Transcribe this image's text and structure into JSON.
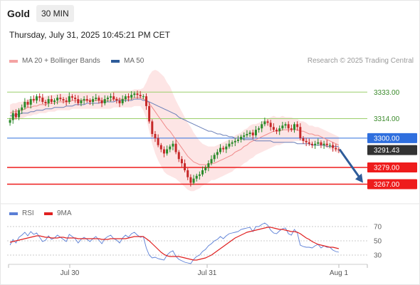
{
  "header": {
    "symbol": "Gold",
    "timeframe": "30 MIN",
    "datetime": "Thursday, July 31, 2025 10:45:21 PM CET"
  },
  "legend": {
    "items": [
      {
        "label": "MA 20 + Bollinger Bands",
        "color": "#f4a3a3"
      },
      {
        "label": "MA 50",
        "color": "#2e5c9a"
      }
    ],
    "credit": "Research © 2025 Trading Central"
  },
  "rsi_legend": {
    "items": [
      {
        "label": "RSI",
        "color": "#5b7fd6"
      },
      {
        "label": "9MA",
        "color": "#e02020"
      }
    ]
  },
  "chart_data": [
    {
      "type": "candlestick",
      "title": "Gold",
      "timeframe": "30 MIN",
      "ylim": [
        3255,
        3350
      ],
      "x_ticks": [
        "Jul 30",
        "Jul 31",
        "Aug 1"
      ],
      "levels": [
        {
          "value": 3333.0,
          "label": "3333.00",
          "kind": "resistance",
          "color": "#9bcf6b"
        },
        {
          "value": 3314.0,
          "label": "3314.00",
          "kind": "resistance",
          "color": "#9bcf6b"
        },
        {
          "value": 3300.0,
          "label": "3300.00",
          "kind": "pivot",
          "color": "#2f6fde"
        },
        {
          "value": 3291.43,
          "label": "3291.43",
          "kind": "last_price",
          "color": "#333333"
        },
        {
          "value": 3279.0,
          "label": "3279.00",
          "kind": "support",
          "color": "#ee1c1c"
        },
        {
          "value": 3267.0,
          "label": "3267.00",
          "kind": "support",
          "color": "#ee1c1c"
        }
      ],
      "forecast_arrow": {
        "from": 3292,
        "to": 3268,
        "direction": "down"
      },
      "closes": [
        3313,
        3318,
        3315,
        3320,
        3322,
        3326,
        3324,
        3328,
        3327,
        3330,
        3329,
        3326,
        3325,
        3328,
        3326,
        3327,
        3329,
        3328,
        3327,
        3326,
        3330,
        3329,
        3328,
        3325,
        3327,
        3328,
        3327,
        3326,
        3328,
        3329,
        3327,
        3325,
        3328,
        3329,
        3330,
        3328,
        3327,
        3325,
        3328,
        3330,
        3329,
        3331,
        3332,
        3331,
        3330,
        3330,
        3323,
        3312,
        3303,
        3300,
        3295,
        3292,
        3289,
        3292,
        3294,
        3296,
        3290,
        3285,
        3282,
        3277,
        3272,
        3268,
        3271,
        3273,
        3274,
        3277,
        3279,
        3282,
        3285,
        3288,
        3290,
        3293,
        3292,
        3294,
        3296,
        3297,
        3298,
        3299,
        3301,
        3302,
        3303,
        3304,
        3302,
        3306,
        3307,
        3310,
        3312,
        3311,
        3308,
        3306,
        3305,
        3307,
        3309,
        3310,
        3307,
        3306,
        3310,
        3308,
        3300,
        3298,
        3297,
        3296,
        3295,
        3296,
        3297,
        3295,
        3296,
        3295,
        3295,
        3293,
        3292,
        3291.43
      ],
      "ma20": [
        3318,
        3319,
        3319,
        3320,
        3320,
        3321,
        3322,
        3322,
        3323,
        3323,
        3324,
        3324,
        3324,
        3325,
        3325,
        3325,
        3326,
        3326,
        3326,
        3326,
        3326,
        3327,
        3327,
        3327,
        3327,
        3327,
        3327,
        3327,
        3327,
        3327,
        3327,
        3327,
        3327,
        3327,
        3327,
        3328,
        3328,
        3328,
        3328,
        3328,
        3328,
        3328,
        3329,
        3329,
        3329,
        3328,
        3327,
        3325,
        3322,
        3319,
        3316,
        3313,
        3310,
        3307,
        3305,
        3302,
        3299,
        3296,
        3293,
        3290,
        3287,
        3285,
        3283,
        3282,
        3281,
        3281,
        3281,
        3281,
        3282,
        3282,
        3283,
        3284,
        3285,
        3286,
        3287,
        3288,
        3290,
        3291,
        3292,
        3294,
        3295,
        3297,
        3298,
        3299,
        3300,
        3301,
        3302,
        3303,
        3304,
        3305,
        3305,
        3305,
        3306,
        3306,
        3306,
        3306,
        3306,
        3306,
        3305,
        3305,
        3304,
        3303,
        3303,
        3302,
        3302,
        3301,
        3300,
        3299,
        3298,
        3297,
        3296,
        3295
      ],
      "ma50": [
        3316,
        3316,
        3317,
        3317,
        3318,
        3318,
        3318,
        3319,
        3319,
        3320,
        3320,
        3320,
        3321,
        3321,
        3321,
        3322,
        3322,
        3322,
        3322,
        3323,
        3323,
        3323,
        3324,
        3324,
        3324,
        3324,
        3325,
        3325,
        3325,
        3325,
        3325,
        3326,
        3326,
        3326,
        3326,
        3326,
        3327,
        3327,
        3327,
        3327,
        3327,
        3327,
        3328,
        3328,
        3328,
        3327,
        3327,
        3326,
        3325,
        3324,
        3323,
        3322,
        3321,
        3320,
        3319,
        3318,
        3317,
        3315,
        3314,
        3313,
        3312,
        3311,
        3310,
        3309,
        3308,
        3307,
        3306,
        3305,
        3305,
        3304,
        3303,
        3303,
        3302,
        3302,
        3301,
        3301,
        3300,
        3300,
        3300,
        3299,
        3299,
        3299,
        3299,
        3298,
        3298,
        3298,
        3298,
        3298,
        3298,
        3297,
        3297,
        3297,
        3297,
        3297,
        3297,
        3297,
        3297,
        3296,
        3296,
        3296,
        3296,
        3296,
        3295,
        3295,
        3295,
        3295,
        3295,
        3294,
        3294,
        3294,
        3294,
        3294
      ],
      "bb_width": [
        6,
        6,
        6,
        6,
        6,
        6,
        6,
        6,
        6,
        6,
        6,
        6,
        6,
        6,
        6,
        6,
        6,
        6,
        6,
        6,
        6,
        6,
        6,
        6,
        6,
        6,
        6,
        6,
        6,
        6,
        6,
        6,
        6,
        6,
        6,
        6,
        6,
        6,
        6,
        6,
        6,
        6,
        6,
        6,
        6,
        8,
        13,
        20,
        26,
        30,
        32,
        33,
        34,
        33,
        32,
        30,
        28,
        27,
        26,
        25,
        24,
        23,
        21,
        19,
        17,
        15,
        14,
        13,
        12,
        12,
        12,
        12,
        12,
        12,
        12,
        12,
        12,
        12,
        12,
        12,
        12,
        12,
        12,
        11,
        11,
        11,
        11,
        11,
        11,
        11,
        10,
        10,
        10,
        9,
        9,
        9,
        8,
        8,
        7,
        7,
        7,
        6,
        6,
        6,
        6,
        6,
        6,
        6,
        6,
        6,
        6,
        6
      ]
    },
    {
      "type": "line",
      "title": "RSI",
      "ylim": [
        20,
        80
      ],
      "y_ticks": [
        30,
        50,
        70
      ],
      "y_tick_labels": [
        "30",
        "50",
        "70"
      ],
      "series": [
        {
          "name": "RSI",
          "color": "#5b7fd6",
          "values": [
            44,
            52,
            47,
            55,
            58,
            62,
            57,
            63,
            59,
            61,
            55,
            49,
            51,
            57,
            52,
            54,
            58,
            55,
            52,
            49,
            59,
            56,
            53,
            47,
            52,
            55,
            52,
            49,
            53,
            56,
            51,
            46,
            53,
            56,
            58,
            53,
            51,
            47,
            54,
            58,
            55,
            60,
            62,
            58,
            55,
            56,
            40,
            30,
            26,
            27,
            25,
            24,
            23,
            30,
            34,
            36,
            28,
            24,
            22,
            20,
            19,
            18,
            24,
            28,
            30,
            35,
            38,
            43,
            46,
            50,
            52,
            56,
            53,
            57,
            60,
            61,
            62,
            63,
            66,
            67,
            68,
            69,
            63,
            70,
            70,
            73,
            75,
            72,
            65,
            61,
            60,
            64,
            67,
            68,
            60,
            58,
            66,
            61,
            44,
            42,
            41,
            41,
            40,
            43,
            45,
            40,
            43,
            41,
            41,
            37,
            35,
            34
          ]
        },
        {
          "name": "9MA",
          "color": "#e02020",
          "values": [
            48,
            49,
            50,
            51,
            52,
            53,
            54,
            55,
            56,
            57,
            57,
            56,
            55,
            55,
            54,
            54,
            54,
            55,
            55,
            54,
            54,
            54,
            54,
            53,
            53,
            53,
            53,
            53,
            53,
            53,
            53,
            52,
            52,
            52,
            53,
            53,
            53,
            53,
            53,
            53,
            54,
            55,
            56,
            56,
            56,
            56,
            53,
            50,
            46,
            42,
            38,
            34,
            31,
            29,
            28,
            28,
            28,
            28,
            27,
            26,
            25,
            24,
            23,
            23,
            24,
            25,
            26,
            28,
            30,
            33,
            36,
            39,
            42,
            45,
            48,
            51,
            54,
            56,
            58,
            60,
            62,
            63,
            64,
            65,
            66,
            67,
            68,
            69,
            69,
            68,
            67,
            66,
            66,
            65,
            64,
            63,
            63,
            62,
            60,
            57,
            54,
            52,
            49,
            47,
            45,
            44,
            43,
            42,
            41,
            41,
            40,
            39
          ]
        }
      ]
    }
  ]
}
